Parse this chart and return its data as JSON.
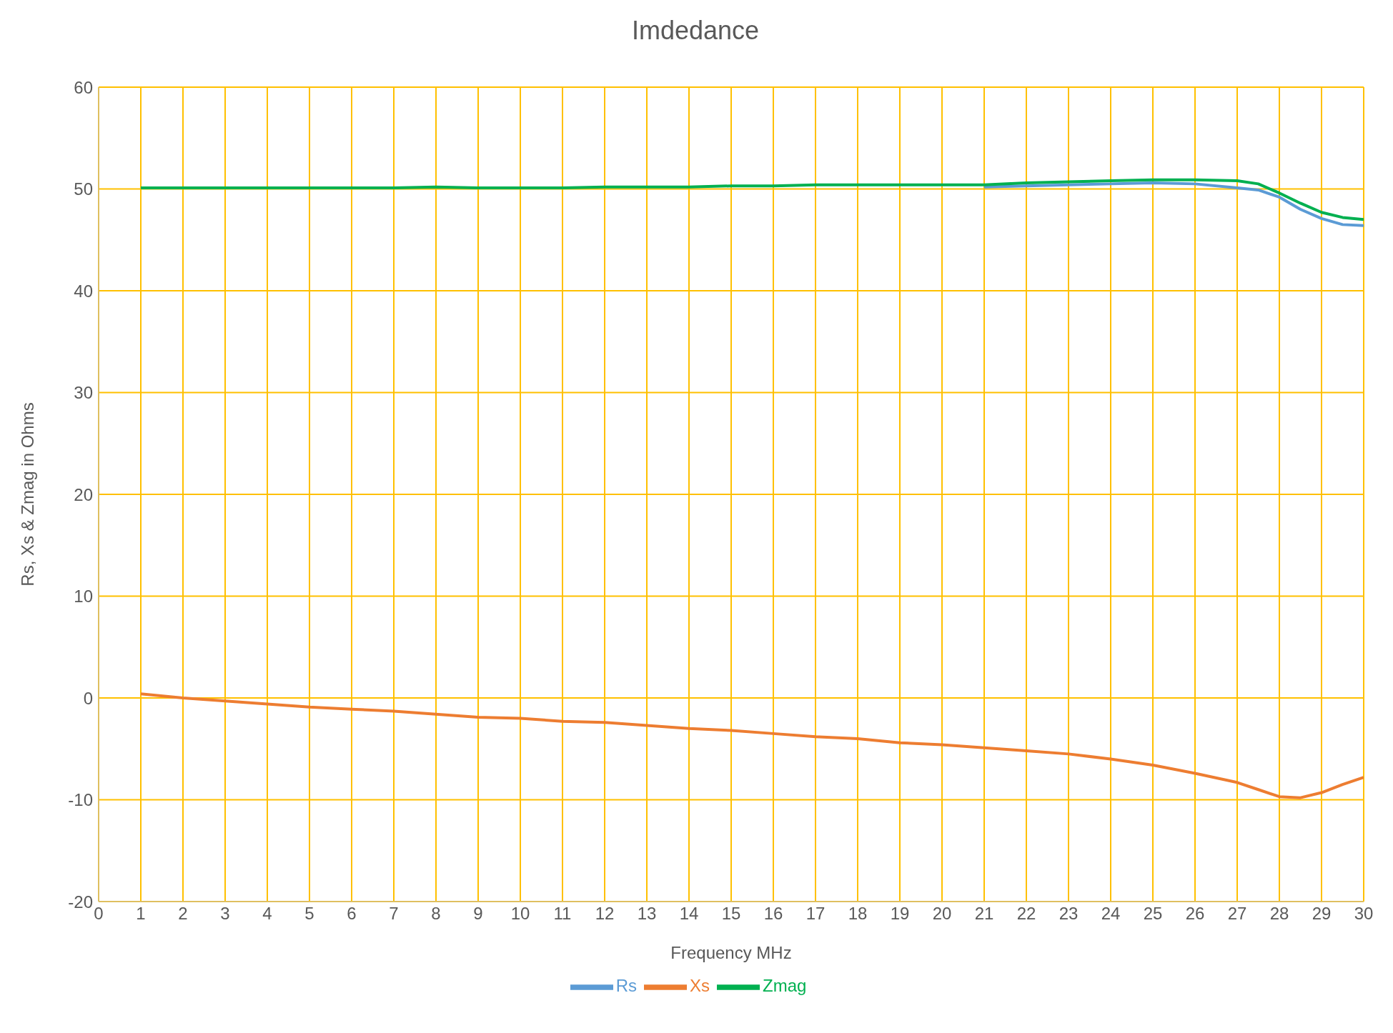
{
  "chart_data": {
    "type": "line",
    "title": "Imdedance",
    "xlabel": "Frequency MHz",
    "ylabel": "Rs, Xs & Zmag in Ohms",
    "x": [
      1,
      2,
      3,
      4,
      5,
      6,
      7,
      8,
      9,
      10,
      11,
      12,
      13,
      14,
      15,
      16,
      17,
      18,
      19,
      20,
      21,
      22,
      23,
      24,
      25,
      26,
      27,
      27.5,
      28,
      28.5,
      29,
      29.5,
      30
    ],
    "series": [
      {
        "name": "Rs",
        "color": "#5b9bd5",
        "values": [
          null,
          null,
          null,
          null,
          null,
          null,
          null,
          null,
          null,
          null,
          null,
          null,
          null,
          null,
          null,
          null,
          null,
          null,
          null,
          null,
          50.2,
          50.3,
          50.4,
          50.5,
          50.6,
          50.5,
          50.1,
          49.9,
          49.2,
          48,
          47.1,
          46.5,
          46.4
        ]
      },
      {
        "name": "Xs",
        "color": "#ed7d31",
        "values": [
          0.4,
          0,
          -0.3,
          -0.6,
          -0.9,
          -1.1,
          -1.3,
          -1.6,
          -1.9,
          -2,
          -2.3,
          -2.4,
          -2.7,
          -3,
          -3.2,
          -3.5,
          -3.8,
          -4,
          -4.4,
          -4.6,
          -4.9,
          -5.2,
          -5.5,
          -6,
          -6.6,
          -7.4,
          -8.3,
          -9,
          -9.7,
          -9.8,
          -9.3,
          -8.5,
          -7.8
        ]
      },
      {
        "name": "Zmag",
        "color": "#00b050",
        "values": [
          50.1,
          50.1,
          50.1,
          50.1,
          50.1,
          50.1,
          50.1,
          50.2,
          50.1,
          50.1,
          50.1,
          50.2,
          50.2,
          50.2,
          50.3,
          50.3,
          50.4,
          50.4,
          50.4,
          50.4,
          50.4,
          50.6,
          50.7,
          50.8,
          50.9,
          50.9,
          50.8,
          50.5,
          49.6,
          48.6,
          47.7,
          47.2,
          47
        ]
      }
    ],
    "xlim": [
      0,
      30
    ],
    "xticks": [
      0,
      1,
      2,
      3,
      4,
      5,
      6,
      7,
      8,
      9,
      10,
      11,
      12,
      13,
      14,
      15,
      16,
      17,
      18,
      19,
      20,
      21,
      22,
      23,
      24,
      25,
      26,
      27,
      28,
      29,
      30
    ],
    "ylim": [
      -20,
      60
    ],
    "yticks": [
      -20,
      -10,
      0,
      10,
      20,
      30,
      40,
      50,
      60
    ],
    "grid": true,
    "legend": "bottom",
    "marker": "none",
    "line_style": "solid"
  }
}
